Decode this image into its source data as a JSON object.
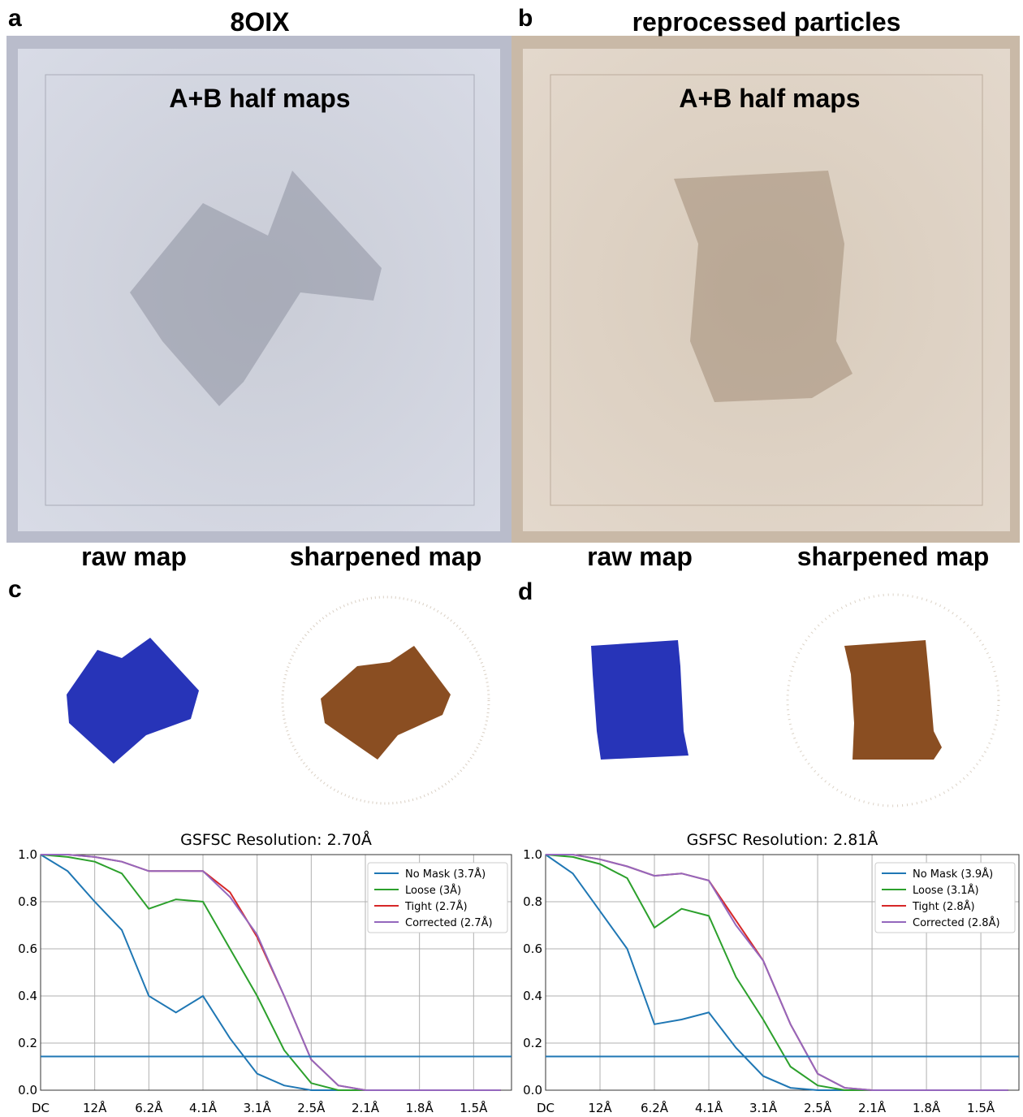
{
  "panels": {
    "a": {
      "letter": "a",
      "title": "8OIX",
      "inner_label": "A+B half maps",
      "raw_label": "raw map",
      "sharp_label": "sharpened map"
    },
    "b": {
      "letter": "b",
      "title": "reprocessed particles",
      "inner_label": "A+B half maps",
      "raw_label": "raw map",
      "sharp_label": "sharpened map"
    },
    "c": {
      "letter": "c"
    },
    "d": {
      "letter": "d"
    }
  },
  "chart_data": [
    {
      "type": "line",
      "title": "GSFSC Resolution: 2.70Å",
      "x": [
        0,
        0.5,
        1,
        1.5,
        2,
        2.5,
        3,
        3.5,
        4,
        4.5,
        5,
        5.5,
        6,
        6.5,
        7,
        7.5,
        8,
        8.5
      ],
      "xlim": [
        0,
        8.7
      ],
      "xticks": [
        {
          "value": 0,
          "label": "DC"
        },
        {
          "value": 1,
          "label": "12Å"
        },
        {
          "value": 2,
          "label": "6.2Å"
        },
        {
          "value": 3,
          "label": "4.1Å"
        },
        {
          "value": 4,
          "label": "3.1Å"
        },
        {
          "value": 5,
          "label": "2.5Å"
        },
        {
          "value": 6,
          "label": "2.1Å"
        },
        {
          "value": 7,
          "label": "1.8Å"
        },
        {
          "value": 8,
          "label": "1.5Å"
        }
      ],
      "ylim": [
        0,
        1
      ],
      "yticks": [
        {
          "value": 0,
          "label": "0.0"
        },
        0.2,
        0.4,
        0.6,
        0.8,
        {
          "value": 1,
          "label": "1.0"
        }
      ],
      "grid": true,
      "legend": "upper right",
      "threshold": 0.143,
      "threshold_color": "#1f77b4",
      "series": [
        {
          "name": "No Mask (3.7Å)",
          "color": "#1f77b4",
          "values": [
            1.0,
            0.93,
            0.8,
            0.68,
            0.4,
            0.33,
            0.4,
            0.22,
            0.07,
            0.02,
            0,
            0,
            0,
            0,
            0,
            0,
            0,
            0
          ]
        },
        {
          "name": "Loose (3Å)",
          "color": "#2ca02c",
          "values": [
            1.0,
            0.99,
            0.97,
            0.92,
            0.77,
            0.81,
            0.8,
            0.6,
            0.4,
            0.17,
            0.03,
            0,
            0,
            0,
            0,
            0,
            0,
            0
          ]
        },
        {
          "name": "Tight (2.7Å)",
          "color": "#d62728",
          "values": [
            1.0,
            1.0,
            0.99,
            0.97,
            0.93,
            0.93,
            0.93,
            0.84,
            0.65,
            0.4,
            0.13,
            0.02,
            0,
            0,
            0,
            0,
            0,
            0
          ]
        },
        {
          "name": "Corrected (2.7Å)",
          "color": "#9467bd",
          "values": [
            1.0,
            1.0,
            0.99,
            0.97,
            0.93,
            0.93,
            0.93,
            0.82,
            0.66,
            0.4,
            0.13,
            0.02,
            0,
            0,
            0,
            0,
            0,
            0
          ]
        }
      ]
    },
    {
      "type": "line",
      "title": "GSFSC Resolution: 2.81Å",
      "x": [
        0,
        0.5,
        1,
        1.5,
        2,
        2.5,
        3,
        3.5,
        4,
        4.5,
        5,
        5.5,
        6,
        6.5,
        7,
        7.5,
        8,
        8.5
      ],
      "xlim": [
        0,
        8.7
      ],
      "xticks": [
        {
          "value": 0,
          "label": "DC"
        },
        {
          "value": 1,
          "label": "12Å"
        },
        {
          "value": 2,
          "label": "6.2Å"
        },
        {
          "value": 3,
          "label": "4.1Å"
        },
        {
          "value": 4,
          "label": "3.1Å"
        },
        {
          "value": 5,
          "label": "2.5Å"
        },
        {
          "value": 6,
          "label": "2.1Å"
        },
        {
          "value": 7,
          "label": "1.8Å"
        },
        {
          "value": 8,
          "label": "1.5Å"
        }
      ],
      "ylim": [
        0,
        1
      ],
      "yticks": [
        {
          "value": 0,
          "label": "0.0"
        },
        0.2,
        0.4,
        0.6,
        0.8,
        {
          "value": 1,
          "label": "1.0"
        }
      ],
      "grid": true,
      "legend": "upper right",
      "threshold": 0.143,
      "threshold_color": "#1f77b4",
      "series": [
        {
          "name": "No Mask (3.9Å)",
          "color": "#1f77b4",
          "values": [
            1.0,
            0.92,
            0.76,
            0.6,
            0.28,
            0.3,
            0.33,
            0.18,
            0.06,
            0.01,
            0,
            0,
            0,
            0,
            0,
            0,
            0,
            0
          ]
        },
        {
          "name": "Loose (3.1Å)",
          "color": "#2ca02c",
          "values": [
            1.0,
            0.99,
            0.96,
            0.9,
            0.69,
            0.77,
            0.74,
            0.48,
            0.3,
            0.1,
            0.02,
            0,
            0,
            0,
            0,
            0,
            0,
            0
          ]
        },
        {
          "name": "Tight (2.8Å)",
          "color": "#d62728",
          "values": [
            1.0,
            1.0,
            0.98,
            0.95,
            0.91,
            0.92,
            0.89,
            0.72,
            0.55,
            0.28,
            0.07,
            0.01,
            0,
            0,
            0,
            0,
            0,
            0
          ]
        },
        {
          "name": "Corrected (2.8Å)",
          "color": "#9467bd",
          "values": [
            1.0,
            1.0,
            0.98,
            0.95,
            0.91,
            0.92,
            0.89,
            0.7,
            0.55,
            0.28,
            0.07,
            0.01,
            0,
            0,
            0,
            0,
            0,
            0
          ]
        }
      ]
    }
  ]
}
